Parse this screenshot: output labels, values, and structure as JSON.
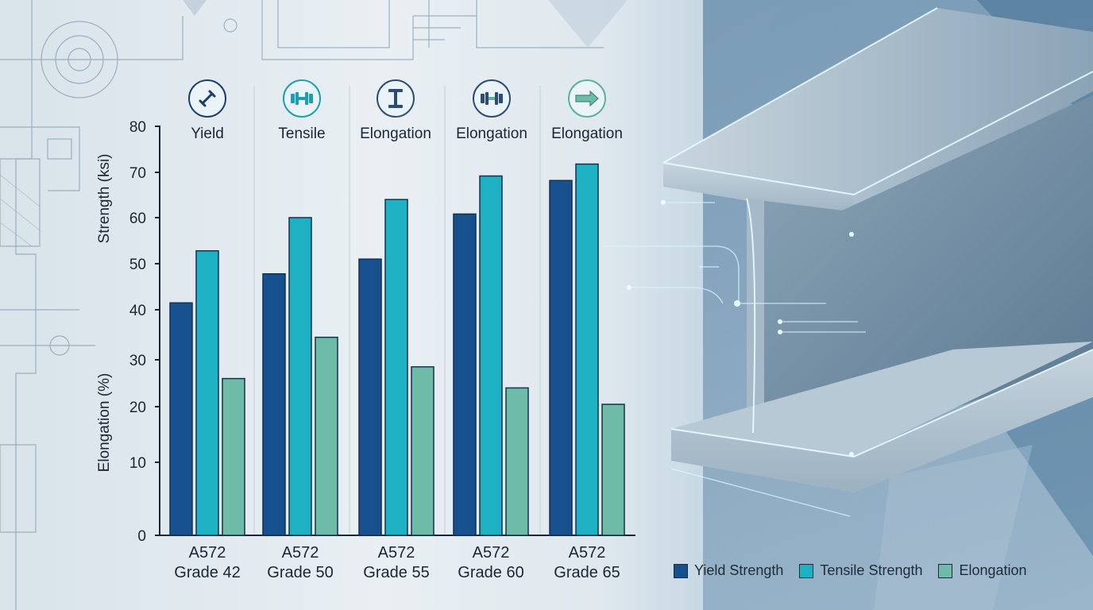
{
  "headers": [
    {
      "label": "Yield",
      "icon": "wrench-icon"
    },
    {
      "label": "Tensile",
      "icon": "dumbbell-icon"
    },
    {
      "label": "Elongation",
      "icon": "i-beam-icon"
    },
    {
      "label": "Elongation",
      "icon": "dumbbell-icon"
    },
    {
      "label": "Elongation",
      "icon": "arrow-right-icon"
    }
  ],
  "colors": {
    "yield": "#17508e",
    "tensile": "#1eb1c3",
    "elongation": "#6ebca7",
    "axis": "#1c2633"
  },
  "legend": [
    {
      "label": "Yield Strength",
      "color": "#17508e"
    },
    {
      "label": "Tensile Strength",
      "color": "#1eb1c3"
    },
    {
      "label": "Elongation",
      "color": "#6ebca7"
    }
  ],
  "chart_data": {
    "type": "bar",
    "categories": [
      [
        "A572",
        "Grade 42"
      ],
      [
        "A572",
        "Grade 50"
      ],
      [
        "A572",
        "Grade 55"
      ],
      [
        "A572",
        "Grade 60"
      ],
      [
        "A572",
        "Grade 65"
      ]
    ],
    "series": [
      {
        "name": "Yield Strength",
        "values": [
          41.5,
          47.8,
          51,
          60.8,
          68.2
        ]
      },
      {
        "name": "Tensile Strength",
        "values": [
          52.8,
          60,
          64,
          69.2,
          71.8
        ]
      },
      {
        "name": "Elongation",
        "values": [
          26,
          34.5,
          28.5,
          24,
          20.5
        ]
      }
    ],
    "ylabel_upper": "Strength (ksi)",
    "ylabel_lower": "Elongation (%)",
    "y_ticks": [
      {
        "value": 0,
        "label": "0"
      },
      {
        "value": 10,
        "label": "10"
      },
      {
        "value": 20,
        "label": "20"
      },
      {
        "value": 30,
        "label": "30"
      },
      {
        "value": 40,
        "label": "40"
      },
      {
        "value": 50,
        "label": "50"
      },
      {
        "value": 60,
        "label": "60"
      },
      {
        "value": 70,
        "label": "70"
      },
      {
        "value": 80,
        "label": "80"
      }
    ],
    "ylim": [
      0,
      80
    ],
    "grid": false,
    "legend_position": "bottom-right"
  }
}
